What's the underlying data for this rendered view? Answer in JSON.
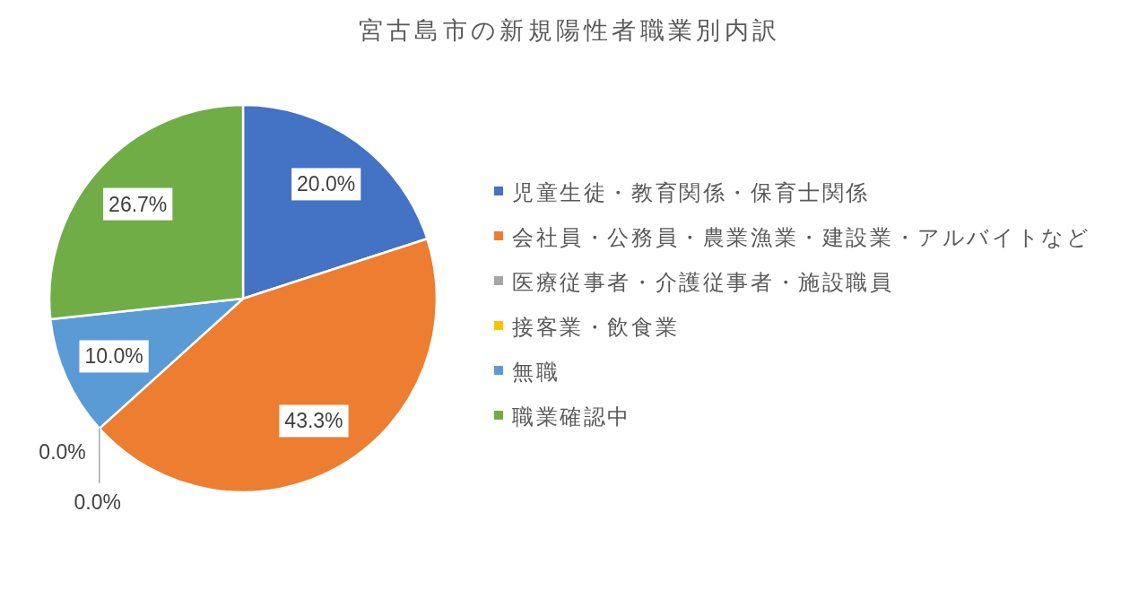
{
  "chart_data": {
    "type": "pie",
    "title": "宮古島市の新規陽性者職業別内訳",
    "categories": [
      "児童生徒・教育関係・保育士関係",
      "会社員・公務員・農業漁業・建設業・アルバイトなど",
      "医療従事者・介護従事者・施設職員",
      "接客業・飲食業",
      "無職",
      "職業確認中"
    ],
    "values": [
      20.0,
      43.3,
      0.0,
      0.0,
      10.0,
      26.7
    ],
    "colors": [
      "#4472c4",
      "#ed7d31",
      "#a5a5a5",
      "#ffc000",
      "#5b9bd5",
      "#70ad47"
    ],
    "value_labels": [
      "20.0%",
      "43.3%",
      "0.0%",
      "0.0%",
      "10.0%",
      "26.7%"
    ],
    "legend": "right"
  }
}
